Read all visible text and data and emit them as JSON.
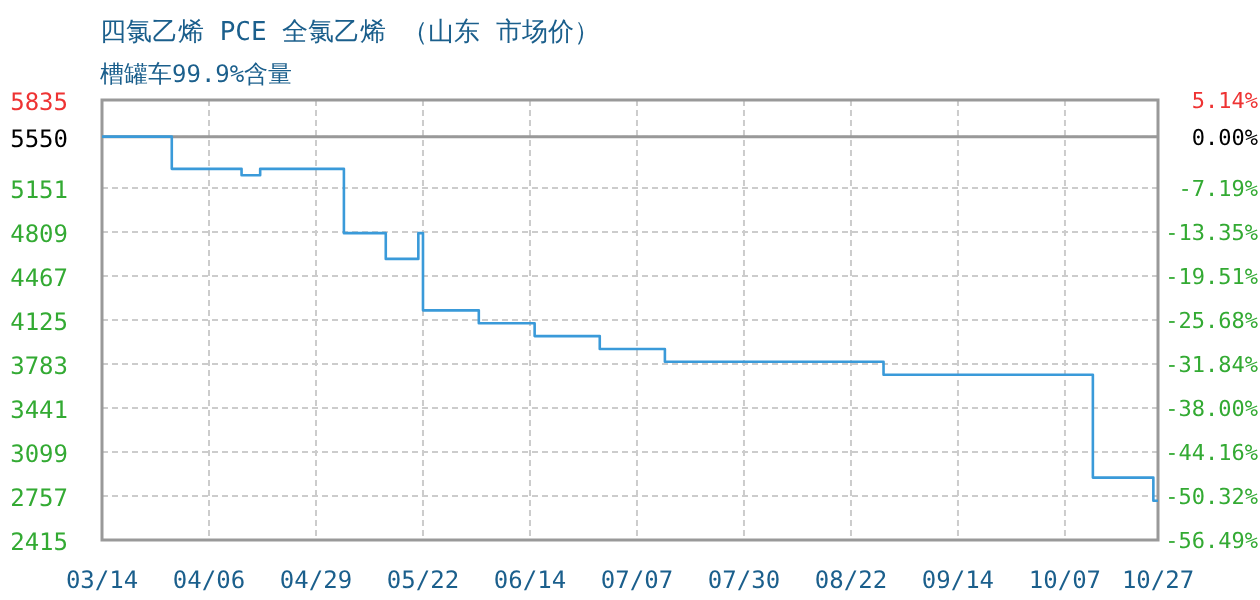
{
  "chart_data": {
    "type": "step",
    "title": "四氯乙烯 PCE 全氯乙烯 （山东 市场价）",
    "subtitle": "槽罐车99.9%含量",
    "x": [
      "--03-14",
      "--03-29",
      "--04-13",
      "--04-17",
      "--05-05",
      "--05-14",
      "--05-21",
      "--05-22",
      "--06-03",
      "--06-15",
      "--06-29",
      "--07-13",
      "--08-29",
      "--10-13",
      "--10-26",
      "--10-27"
    ],
    "series": [
      {
        "color": "#3a9ad9",
        "values": [
          5550,
          5300,
          5250,
          5300,
          4800,
          4600,
          4800,
          4200,
          4100,
          4000,
          3900,
          3800,
          3700,
          2900,
          2720,
          2720
        ]
      }
    ],
    "xlim": [
      "--03-14",
      "--10-27"
    ],
    "xticks": [
      {
        "value": "--03-14",
        "label": "03/14"
      },
      {
        "value": "--04-06",
        "label": "04/06"
      },
      {
        "value": "--04-29",
        "label": "04/29"
      },
      {
        "value": "--05-22",
        "label": "05/22"
      },
      {
        "value": "--06-14",
        "label": "06/14"
      },
      {
        "value": "--07-07",
        "label": "07/07"
      },
      {
        "value": "--07-30",
        "label": "07/30"
      },
      {
        "value": "--08-22",
        "label": "08/22"
      },
      {
        "value": "--09-14",
        "label": "09/14"
      },
      {
        "value": "--10-07",
        "label": "10/07"
      },
      {
        "value": "--10-27",
        "label": "10/27"
      }
    ],
    "ylim": [
      2415,
      5835
    ],
    "yticks": [
      2415,
      2757,
      3099,
      3441,
      3783,
      4125,
      4467,
      4809,
      5151,
      5550,
      5835
    ],
    "y2lim": [
      -56.49,
      5.14
    ],
    "y2ticks": [
      {
        "value": -56.49,
        "label": "-56.49%"
      },
      {
        "value": -50.32,
        "label": "-50.32%"
      },
      {
        "value": -44.16,
        "label": "-44.16%"
      },
      {
        "value": -38.0,
        "label": "-38.00%"
      },
      {
        "value": -31.84,
        "label": "-31.84%"
      },
      {
        "value": -25.68,
        "label": "-25.68%"
      },
      {
        "value": -19.51,
        "label": "-19.51%"
      },
      {
        "value": -13.35,
        "label": "-13.35%"
      },
      {
        "value": -7.19,
        "label": "-7.19%"
      },
      {
        "value": 0,
        "label": "0.00%"
      },
      {
        "value": 5.14,
        "label": "5.14%"
      }
    ],
    "ref_lines": [
      {
        "axis": "y",
        "value": 5550,
        "color": "#999999"
      }
    ],
    "grid": true
  }
}
